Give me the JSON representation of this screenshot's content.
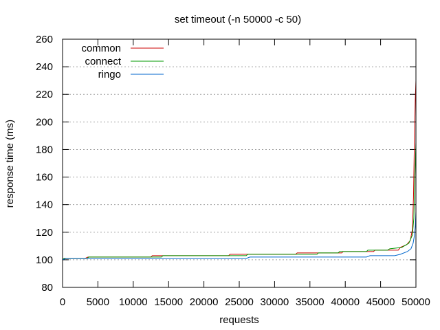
{
  "chart_data": {
    "type": "line",
    "title": "set timeout (-n 50000 -c 50)",
    "xlabel": "requests",
    "ylabel": "response time (ms)",
    "xlim": [
      0,
      50000
    ],
    "ylim": [
      80,
      260
    ],
    "xticks": [
      0,
      5000,
      10000,
      15000,
      20000,
      25000,
      30000,
      35000,
      40000,
      45000,
      50000
    ],
    "yticks": [
      80,
      100,
      120,
      140,
      160,
      180,
      200,
      220,
      240,
      260
    ],
    "grid": "horizontal dashed",
    "legend_position": "top-left",
    "series": [
      {
        "name": "common",
        "color": "#cc0000",
        "points": [
          [
            0,
            100
          ],
          [
            200,
            101
          ],
          [
            3200,
            101
          ],
          [
            3600,
            102
          ],
          [
            12500,
            102
          ],
          [
            12700,
            103
          ],
          [
            23500,
            103
          ],
          [
            23700,
            104
          ],
          [
            33000,
            104
          ],
          [
            33200,
            105
          ],
          [
            39500,
            105
          ],
          [
            39700,
            106
          ],
          [
            44000,
            106
          ],
          [
            44200,
            107
          ],
          [
            47500,
            107
          ],
          [
            47800,
            109
          ],
          [
            48700,
            111
          ],
          [
            49200,
            114
          ],
          [
            49500,
            122
          ],
          [
            49650,
            145
          ],
          [
            49780,
            185
          ],
          [
            49900,
            215
          ],
          [
            50000,
            230
          ]
        ]
      },
      {
        "name": "connect",
        "color": "#009900",
        "points": [
          [
            0,
            100
          ],
          [
            200,
            101
          ],
          [
            3500,
            101
          ],
          [
            3700,
            102
          ],
          [
            14000,
            102
          ],
          [
            14200,
            103
          ],
          [
            26000,
            103
          ],
          [
            26200,
            104
          ],
          [
            36000,
            104
          ],
          [
            36200,
            105
          ],
          [
            39000,
            105
          ],
          [
            39200,
            106
          ],
          [
            43000,
            106
          ],
          [
            43200,
            107
          ],
          [
            46000,
            107
          ],
          [
            46300,
            108
          ],
          [
            48000,
            109
          ],
          [
            49000,
            112
          ],
          [
            49500,
            118
          ],
          [
            49700,
            130
          ],
          [
            49850,
            160
          ],
          [
            50000,
            185
          ]
        ]
      },
      {
        "name": "ringo",
        "color": "#0066cc",
        "points": [
          [
            0,
            100
          ],
          [
            500,
            101
          ],
          [
            26000,
            101
          ],
          [
            26500,
            102
          ],
          [
            43000,
            102
          ],
          [
            43500,
            103
          ],
          [
            47000,
            103
          ],
          [
            47800,
            104
          ],
          [
            48800,
            106
          ],
          [
            49300,
            108
          ],
          [
            49600,
            112
          ],
          [
            49800,
            118
          ],
          [
            49920,
            125
          ],
          [
            50000,
            135
          ]
        ]
      }
    ]
  }
}
